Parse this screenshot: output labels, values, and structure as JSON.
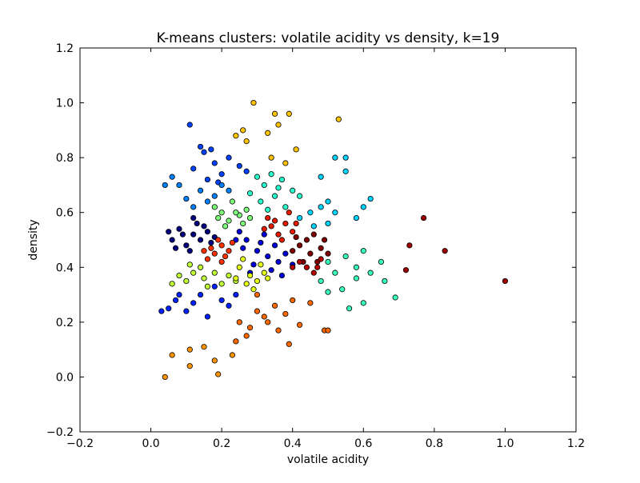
{
  "chart_data": {
    "type": "scatter",
    "title": "K-means clusters: volatile acidity vs density, k=19",
    "xlabel": "volatile acidity",
    "ylabel": "density",
    "xlim": [
      -0.2,
      1.2
    ],
    "ylim": [
      -0.2,
      1.2
    ],
    "x_ticks": [
      -0.2,
      0.0,
      0.2,
      0.4,
      0.6,
      0.8,
      1.0,
      1.2
    ],
    "y_ticks": [
      -0.2,
      0.0,
      0.2,
      0.4,
      0.6,
      0.8,
      1.0,
      1.2
    ],
    "x_tick_labels": [
      "−0.2",
      "0.0",
      "0.2",
      "0.4",
      "0.6",
      "0.8",
      "1.0",
      "1.2"
    ],
    "y_tick_labels": [
      "−0.2",
      "0.0",
      "0.2",
      "0.4",
      "0.6",
      "0.8",
      "1.0",
      "1.2"
    ],
    "grid": false,
    "legend": "none",
    "clusters": [
      {
        "color": "#00007f",
        "points": [
          [
            0.12,
            0.52
          ],
          [
            0.08,
            0.54
          ],
          [
            0.14,
            0.5
          ],
          [
            0.1,
            0.48
          ],
          [
            0.16,
            0.53
          ],
          [
            0.06,
            0.5
          ],
          [
            0.13,
            0.56
          ],
          [
            0.11,
            0.46
          ],
          [
            0.17,
            0.49
          ],
          [
            0.09,
            0.52
          ],
          [
            0.15,
            0.55
          ],
          [
            0.07,
            0.47
          ],
          [
            0.12,
            0.58
          ],
          [
            0.18,
            0.51
          ],
          [
            0.05,
            0.53
          ]
        ]
      },
      {
        "color": "#0000d8",
        "points": [
          [
            0.27,
            0.5
          ],
          [
            0.3,
            0.46
          ],
          [
            0.25,
            0.53
          ],
          [
            0.33,
            0.44
          ],
          [
            0.29,
            0.41
          ],
          [
            0.35,
            0.48
          ],
          [
            0.26,
            0.47
          ],
          [
            0.32,
            0.52
          ],
          [
            0.36,
            0.42
          ],
          [
            0.28,
            0.38
          ],
          [
            0.38,
            0.45
          ],
          [
            0.31,
            0.49
          ],
          [
            0.34,
            0.39
          ],
          [
            0.24,
            0.5
          ],
          [
            0.37,
            0.37
          ],
          [
            0.4,
            0.41
          ]
        ]
      },
      {
        "color": "#0040ff",
        "points": [
          [
            0.15,
            0.82
          ],
          [
            0.18,
            0.78
          ],
          [
            0.12,
            0.76
          ],
          [
            0.2,
            0.74
          ],
          [
            0.22,
            0.8
          ],
          [
            0.16,
            0.72
          ],
          [
            0.25,
            0.77
          ],
          [
            0.11,
            0.92
          ],
          [
            0.14,
            0.84
          ],
          [
            0.19,
            0.71
          ],
          [
            0.27,
            0.75
          ],
          [
            0.17,
            0.83
          ]
        ]
      },
      {
        "color": "#0020ff",
        "points": [
          [
            0.05,
            0.25
          ],
          [
            0.08,
            0.3
          ],
          [
            0.12,
            0.27
          ],
          [
            0.16,
            0.22
          ],
          [
            0.2,
            0.28
          ],
          [
            0.1,
            0.24
          ],
          [
            0.18,
            0.33
          ],
          [
            0.14,
            0.3
          ],
          [
            0.03,
            0.24
          ],
          [
            0.22,
            0.26
          ],
          [
            0.07,
            0.28
          ],
          [
            0.24,
            0.3
          ]
        ]
      },
      {
        "color": "#0080ff",
        "points": [
          [
            0.1,
            0.65
          ],
          [
            0.14,
            0.68
          ],
          [
            0.08,
            0.7
          ],
          [
            0.18,
            0.66
          ],
          [
            0.12,
            0.62
          ],
          [
            0.2,
            0.7
          ],
          [
            0.06,
            0.73
          ],
          [
            0.16,
            0.64
          ],
          [
            0.22,
            0.68
          ],
          [
            0.04,
            0.7
          ]
        ]
      },
      {
        "color": "#00d4ff",
        "points": [
          [
            0.45,
            0.6
          ],
          [
            0.48,
            0.62
          ],
          [
            0.42,
            0.58
          ],
          [
            0.5,
            0.56
          ],
          [
            0.52,
            0.6
          ],
          [
            0.46,
            0.55
          ],
          [
            0.55,
            0.75
          ],
          [
            0.52,
            0.8
          ],
          [
            0.48,
            0.73
          ],
          [
            0.55,
            0.8
          ],
          [
            0.6,
            0.62
          ],
          [
            0.62,
            0.65
          ],
          [
            0.58,
            0.58
          ],
          [
            0.5,
            0.64
          ]
        ]
      },
      {
        "color": "#29ffce",
        "points": [
          [
            0.32,
            0.7
          ],
          [
            0.35,
            0.66
          ],
          [
            0.3,
            0.73
          ],
          [
            0.38,
            0.62
          ],
          [
            0.34,
            0.74
          ],
          [
            0.36,
            0.69
          ],
          [
            0.28,
            0.67
          ],
          [
            0.4,
            0.68
          ],
          [
            0.42,
            0.66
          ],
          [
            0.33,
            0.61
          ],
          [
            0.37,
            0.72
          ],
          [
            0.31,
            0.64
          ]
        ]
      },
      {
        "color": "#3affbc",
        "points": [
          [
            0.5,
            0.42
          ],
          [
            0.52,
            0.38
          ],
          [
            0.55,
            0.44
          ],
          [
            0.48,
            0.35
          ],
          [
            0.58,
            0.4
          ],
          [
            0.6,
            0.46
          ],
          [
            0.54,
            0.32
          ],
          [
            0.62,
            0.38
          ],
          [
            0.65,
            0.42
          ],
          [
            0.56,
            0.25
          ],
          [
            0.6,
            0.27
          ],
          [
            0.66,
            0.35
          ],
          [
            0.69,
            0.29
          ],
          [
            0.5,
            0.31
          ],
          [
            0.58,
            0.36
          ]
        ]
      },
      {
        "color": "#7dff7a",
        "points": [
          [
            0.2,
            0.6
          ],
          [
            0.22,
            0.57
          ],
          [
            0.18,
            0.62
          ],
          [
            0.25,
            0.59
          ],
          [
            0.27,
            0.61
          ],
          [
            0.21,
            0.55
          ],
          [
            0.23,
            0.64
          ],
          [
            0.19,
            0.58
          ],
          [
            0.26,
            0.56
          ],
          [
            0.24,
            0.6
          ],
          [
            0.28,
            0.58
          ]
        ]
      },
      {
        "color": "#c0ff36",
        "points": [
          [
            0.12,
            0.38
          ],
          [
            0.15,
            0.36
          ],
          [
            0.1,
            0.35
          ],
          [
            0.18,
            0.38
          ],
          [
            0.2,
            0.34
          ],
          [
            0.14,
            0.4
          ],
          [
            0.22,
            0.37
          ],
          [
            0.08,
            0.37
          ],
          [
            0.16,
            0.33
          ],
          [
            0.24,
            0.35
          ],
          [
            0.06,
            0.34
          ],
          [
            0.11,
            0.41
          ]
        ]
      },
      {
        "color": "#e4ff12",
        "points": [
          [
            0.25,
            0.4
          ],
          [
            0.28,
            0.37
          ],
          [
            0.3,
            0.35
          ],
          [
            0.26,
            0.43
          ],
          [
            0.32,
            0.38
          ],
          [
            0.29,
            0.32
          ],
          [
            0.27,
            0.34
          ],
          [
            0.31,
            0.41
          ],
          [
            0.24,
            0.36
          ],
          [
            0.33,
            0.36
          ]
        ]
      },
      {
        "color": "#ffc400",
        "points": [
          [
            0.29,
            1.0
          ],
          [
            0.35,
            0.96
          ],
          [
            0.39,
            0.96
          ],
          [
            0.53,
            0.94
          ],
          [
            0.26,
            0.9
          ],
          [
            0.24,
            0.88
          ],
          [
            0.36,
            0.92
          ],
          [
            0.27,
            0.86
          ],
          [
            0.33,
            0.89
          ],
          [
            0.41,
            0.83
          ],
          [
            0.34,
            0.8
          ],
          [
            0.38,
            0.78
          ]
        ]
      },
      {
        "color": "#ff6800",
        "points": [
          [
            0.3,
            0.24
          ],
          [
            0.33,
            0.2
          ],
          [
            0.28,
            0.18
          ],
          [
            0.35,
            0.26
          ],
          [
            0.32,
            0.22
          ],
          [
            0.25,
            0.2
          ],
          [
            0.38,
            0.23
          ],
          [
            0.4,
            0.28
          ],
          [
            0.36,
            0.17
          ],
          [
            0.42,
            0.19
          ],
          [
            0.3,
            0.3
          ],
          [
            0.45,
            0.27
          ],
          [
            0.39,
            0.12
          ],
          [
            0.49,
            0.17
          ],
          [
            0.5,
            0.17
          ],
          [
            0.27,
            0.15
          ],
          [
            0.24,
            0.13
          ]
        ]
      },
      {
        "color": "#ff9400",
        "points": [
          [
            0.04,
            0.0
          ],
          [
            0.06,
            0.08
          ],
          [
            0.11,
            0.04
          ],
          [
            0.11,
            0.1
          ],
          [
            0.15,
            0.11
          ],
          [
            0.19,
            0.01
          ],
          [
            0.18,
            0.06
          ],
          [
            0.23,
            0.08
          ]
        ]
      },
      {
        "color": "#ff3000",
        "points": [
          [
            0.18,
            0.45
          ],
          [
            0.2,
            0.48
          ],
          [
            0.16,
            0.43
          ],
          [
            0.22,
            0.46
          ],
          [
            0.19,
            0.5
          ],
          [
            0.17,
            0.47
          ],
          [
            0.21,
            0.44
          ],
          [
            0.15,
            0.46
          ],
          [
            0.2,
            0.42
          ],
          [
            0.23,
            0.49
          ]
        ]
      },
      {
        "color": "#e41a00",
        "points": [
          [
            0.34,
            0.55
          ],
          [
            0.36,
            0.52
          ],
          [
            0.38,
            0.56
          ],
          [
            0.32,
            0.54
          ],
          [
            0.4,
            0.53
          ],
          [
            0.35,
            0.57
          ],
          [
            0.37,
            0.5
          ],
          [
            0.33,
            0.58
          ],
          [
            0.39,
            0.6
          ],
          [
            0.41,
            0.56
          ]
        ]
      },
      {
        "color": "#7f0000",
        "points": [
          [
            0.42,
            0.48
          ],
          [
            0.45,
            0.45
          ],
          [
            0.44,
            0.5
          ],
          [
            0.47,
            0.42
          ],
          [
            0.4,
            0.46
          ],
          [
            0.48,
            0.47
          ],
          [
            0.43,
            0.42
          ],
          [
            0.46,
            0.52
          ],
          [
            0.5,
            0.45
          ],
          [
            0.41,
            0.51
          ],
          [
            0.49,
            0.5
          ]
        ]
      },
      {
        "color": "#9a0000",
        "points": [
          [
            0.77,
            0.58
          ],
          [
            0.73,
            0.48
          ],
          [
            0.83,
            0.46
          ],
          [
            0.72,
            0.39
          ],
          [
            1.0,
            0.35
          ]
        ]
      },
      {
        "color": "#b40000",
        "points": [
          [
            0.44,
            0.4
          ],
          [
            0.46,
            0.38
          ],
          [
            0.42,
            0.42
          ],
          [
            0.48,
            0.43
          ],
          [
            0.4,
            0.4
          ],
          [
            0.47,
            0.4
          ]
        ]
      }
    ]
  }
}
